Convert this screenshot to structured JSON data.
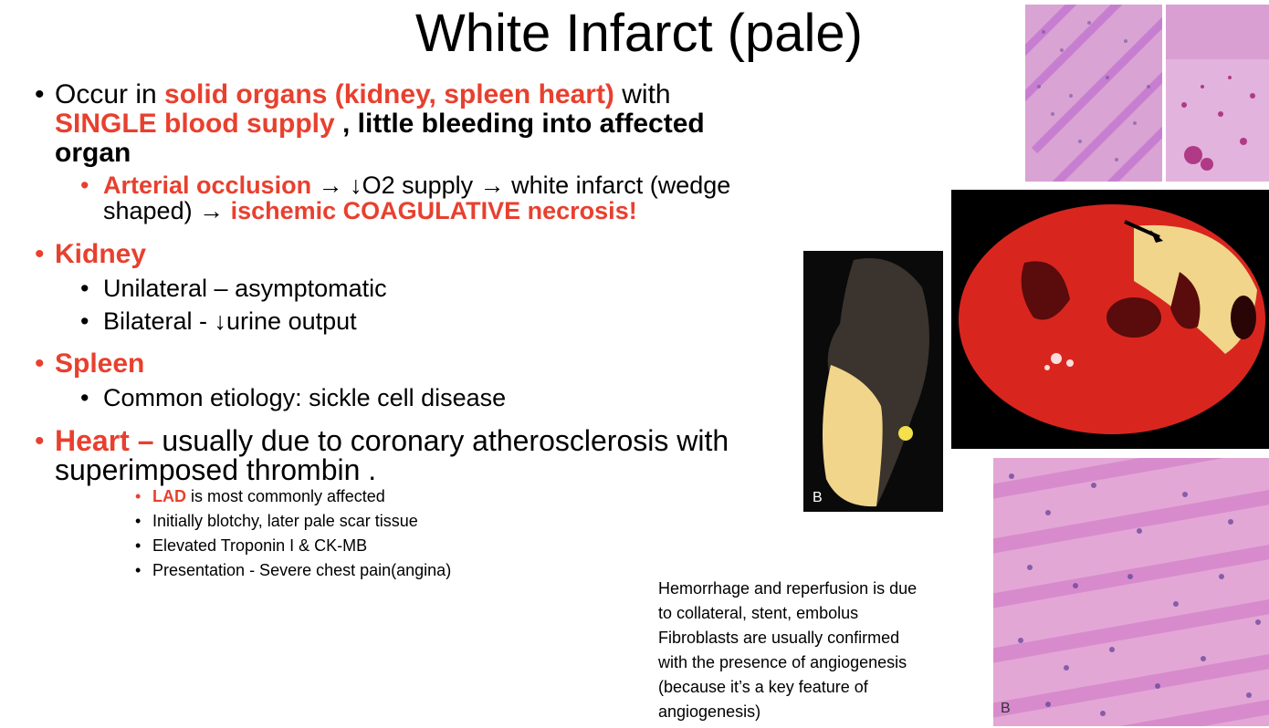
{
  "title": "White Infarct (pale)",
  "bullet_glyph": "•",
  "occur": {
    "t1": "Occur in ",
    "t2": "solid organs (kidney, spleen heart)",
    "t3": " with",
    "t4": "SINGLE blood supply",
    "t5": " , little bleeding into affected",
    "t6": "organ"
  },
  "arterial": {
    "t1": "Arterial occlusion",
    "t2": " → ↓O2 supply → white infarct (wedge",
    "t3": "shaped) → ",
    "t4": "ischemic COAGULATIVE necrosis!"
  },
  "kidney": {
    "heading": "Kidney",
    "items": [
      "Unilateral – asymptomatic",
      "Bilateral - ↓urine output"
    ]
  },
  "spleen": {
    "heading": "Spleen",
    "items": [
      "Common etiology: sickle cell disease"
    ]
  },
  "heart": {
    "heading": "Heart –",
    "t1": " usually due to coronary atherosclerosis with",
    "t2": "superimposed thrombin .",
    "lad": "LAD",
    "lad_rest": " is most commonly affected",
    "items": [
      "Initially blotchy, later pale scar tissue",
      "Elevated Troponin I & CK-MB",
      "Presentation - Severe chest pain(angina)"
    ]
  },
  "note": {
    "lines": [
      "Hemorrhage and reperfusion is due",
      "to collateral, stent, embolus",
      "Fibroblasts are usually confirmed",
      "with the presence of angiogenesis",
      "(because it’s a key feature of",
      "angiogenesis)"
    ]
  },
  "image_labels": {
    "spleen": "B",
    "histo": "B"
  },
  "colors": {
    "accent_red": "#e8402e",
    "histo_pink": "#e3a7d6",
    "heart_red": "#d8261f",
    "pale_yellow": "#f1d58a"
  }
}
